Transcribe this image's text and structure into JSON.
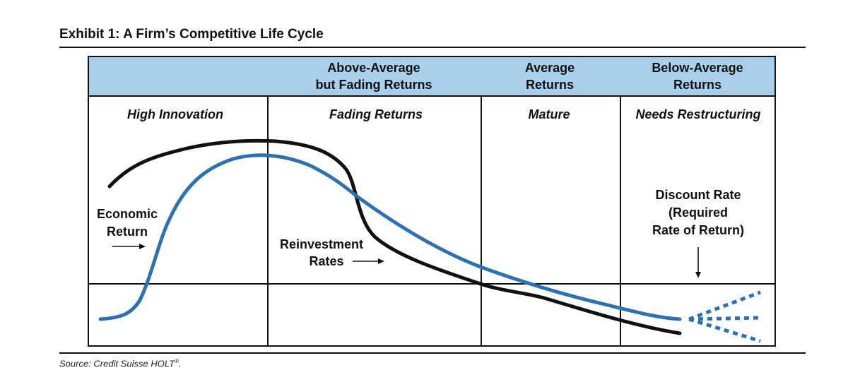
{
  "title": "Exhibit 1: A Firm’s Competitive Life Cycle",
  "source": "Source: Credit Suisse HOLT",
  "source_mark": "®",
  "source_end": ".",
  "colors": {
    "header": "#a9cfeb",
    "blue_curve": "#2e71b2",
    "black_curve": "#111111"
  },
  "header": {
    "col1": "",
    "col2": [
      "Above-Average",
      "but Fading Returns"
    ],
    "col3": [
      "Average",
      "Returns"
    ],
    "col4": [
      "Below-Average",
      "Returns"
    ]
  },
  "stages": [
    "High Innovation",
    "Fading Returns",
    "Mature",
    "Needs Restructuring"
  ],
  "labels": {
    "economic_return": [
      "Economic",
      "Return"
    ],
    "reinvestment_rates": [
      "Reinvestment",
      "Rates"
    ],
    "discount_rate": [
      "Discount Rate",
      "(Required",
      "Rate of Return)"
    ]
  }
}
